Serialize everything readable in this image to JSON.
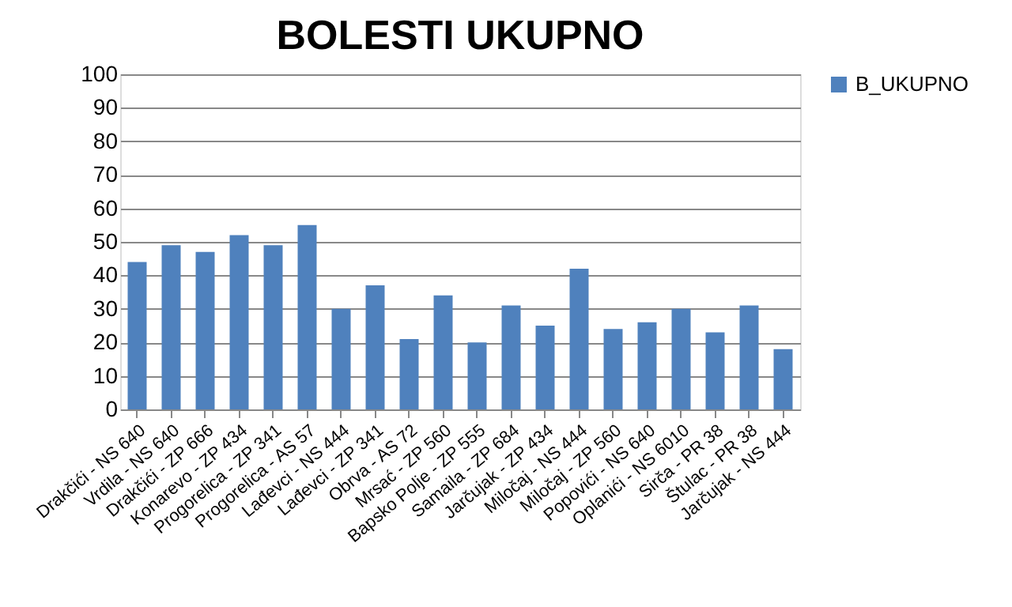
{
  "chart_data": {
    "type": "bar",
    "title": "BOLESTI UKUPNO",
    "categories": [
      "Drakčići - NS 640",
      "Vrdila - NS 640",
      "Drakčići - ZP 666",
      "Konarevo - ZP 434",
      "Progorelica - ZP 341",
      "Progorelica - AS 57",
      "Lađevci - NS 444",
      "Lađevci - ZP 341",
      "Obrva - AS 72",
      "Mrsać - ZP 560",
      "Bapsko Polje - ZP 555",
      "Samaila - ZP 684",
      "Jarčujak - ZP 434",
      "Miločaj - NS 444",
      "Miločaj - ZP 560",
      "Popovići - NS 640",
      "Oplanići - NS 6010",
      "Sirča - PR 38",
      "Štulac - PR 38",
      "Jarčujak - NS 444"
    ],
    "series": [
      {
        "name": "B_UKUPNO",
        "color": "#4f81bd",
        "values": [
          44,
          49,
          47,
          52,
          49,
          55,
          30,
          37,
          21,
          34,
          20,
          31,
          25,
          42,
          24,
          26,
          30,
          23,
          31,
          18
        ]
      }
    ],
    "ylim": [
      0,
      100
    ],
    "yticks": [
      0,
      10,
      20,
      30,
      40,
      50,
      60,
      70,
      80,
      90,
      100
    ],
    "grid": "y",
    "legend": "right"
  }
}
